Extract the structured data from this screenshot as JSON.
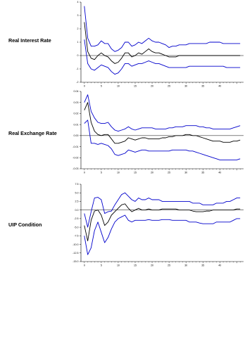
{
  "chart_data": [
    {
      "type": "line",
      "row_label": "Real Interest Rate",
      "xlim": [
        -1,
        47
      ],
      "ylim": [
        -2,
        4
      ],
      "x_ticks": [
        "0",
        "5",
        "10",
        "15",
        "20",
        "25",
        "30",
        "35",
        "40"
      ],
      "y_ticks": [
        "-2",
        "-1",
        "0",
        "1",
        "2",
        "3",
        "4"
      ],
      "x": [
        0,
        1,
        2,
        3,
        4,
        5,
        6,
        7,
        8,
        9,
        10,
        11,
        12,
        13,
        14,
        15,
        16,
        17,
        18,
        19,
        20,
        21,
        22,
        23,
        24,
        25,
        26,
        27,
        28,
        29,
        30,
        31,
        32,
        33,
        34,
        35,
        36,
        37,
        38,
        39,
        40,
        41,
        42,
        43,
        44,
        45,
        46
      ],
      "series": [
        {
          "role": "upper",
          "color": "#0000cc",
          "values": [
            3.7,
            1.3,
            0.7,
            0.7,
            0.8,
            1.1,
            0.9,
            0.9,
            0.5,
            0.3,
            0.4,
            0.6,
            1.0,
            1.0,
            0.7,
            0.8,
            1.0,
            0.9,
            1.1,
            1.3,
            1.1,
            1.0,
            1.0,
            0.9,
            0.8,
            0.6,
            0.7,
            0.7,
            0.8,
            0.8,
            0.8,
            0.9,
            0.9,
            0.9,
            0.9,
            0.9,
            0.9,
            1.0,
            1.0,
            1.0,
            1.0,
            0.9,
            0.9,
            0.9,
            0.9,
            0.9,
            0.9
          ]
        },
        {
          "role": "response",
          "color": "#000000",
          "values": [
            2.5,
            0.3,
            -0.2,
            -0.3,
            0.0,
            0.2,
            0.0,
            -0.1,
            -0.4,
            -0.6,
            -0.5,
            -0.2,
            0.2,
            0.2,
            -0.1,
            0.0,
            0.2,
            0.1,
            0.3,
            0.5,
            0.3,
            0.2,
            0.2,
            0.1,
            0.0,
            -0.1,
            -0.1,
            -0.1,
            0.0,
            0.0,
            0.0,
            0.0,
            0.0,
            0.0,
            0.0,
            0.0,
            0.0,
            0.0,
            0.0,
            0.0,
            0.0,
            0.0,
            0.0,
            0.0,
            0.0,
            0.0,
            0.0
          ]
        },
        {
          "role": "lower",
          "color": "#0000cc",
          "values": [
            1.2,
            -0.6,
            -1.0,
            -1.1,
            -0.9,
            -0.7,
            -0.8,
            -0.9,
            -1.2,
            -1.4,
            -1.3,
            -1.0,
            -0.6,
            -0.6,
            -0.8,
            -0.7,
            -0.6,
            -0.6,
            -0.5,
            -0.4,
            -0.5,
            -0.6,
            -0.6,
            -0.7,
            -0.8,
            -0.9,
            -0.9,
            -0.9,
            -0.9,
            -0.9,
            -0.9,
            -0.8,
            -0.8,
            -0.8,
            -0.8,
            -0.8,
            -0.8,
            -0.8,
            -0.8,
            -0.8,
            -0.8,
            -0.8,
            -0.9,
            -0.9,
            -0.9,
            -0.9,
            -0.9
          ]
        }
      ]
    },
    {
      "type": "line",
      "row_label": "Real Exchange Rate",
      "xlim": [
        -1,
        47
      ],
      "ylim": [
        -0.03,
        0.04
      ],
      "x_ticks": [
        "0",
        "5",
        "10",
        "15",
        "20",
        "25",
        "30",
        "35",
        "40"
      ],
      "y_ticks": [
        "-0.03",
        "-0.02",
        "-0.01",
        "0.00",
        "0.01",
        "0.02",
        "0.03",
        "0.04"
      ],
      "x": [
        0,
        1,
        2,
        3,
        4,
        5,
        6,
        7,
        8,
        9,
        10,
        11,
        12,
        13,
        14,
        15,
        16,
        17,
        18,
        19,
        20,
        21,
        22,
        23,
        24,
        25,
        26,
        27,
        28,
        29,
        30,
        31,
        32,
        33,
        34,
        35,
        36,
        37,
        38,
        39,
        40,
        41,
        42,
        43,
        44,
        45,
        46
      ],
      "series": [
        {
          "role": "upper",
          "color": "#0000cc",
          "values": [
            0.03,
            0.037,
            0.022,
            0.016,
            0.012,
            0.011,
            0.011,
            0.012,
            0.008,
            0.005,
            0.004,
            0.005,
            0.006,
            0.008,
            0.006,
            0.005,
            0.006,
            0.007,
            0.007,
            0.007,
            0.007,
            0.006,
            0.006,
            0.006,
            0.006,
            0.007,
            0.007,
            0.008,
            0.008,
            0.008,
            0.009,
            0.009,
            0.009,
            0.009,
            0.008,
            0.008,
            0.007,
            0.007,
            0.006,
            0.006,
            0.006,
            0.006,
            0.006,
            0.006,
            0.007,
            0.008,
            0.009
          ]
        },
        {
          "role": "response",
          "color": "#000000",
          "values": [
            0.023,
            0.03,
            0.012,
            0.004,
            0.001,
            0.0,
            0.001,
            0.001,
            -0.003,
            -0.007,
            -0.007,
            -0.006,
            -0.005,
            -0.002,
            -0.003,
            -0.004,
            -0.003,
            -0.002,
            -0.002,
            -0.003,
            -0.003,
            -0.003,
            -0.003,
            -0.002,
            -0.002,
            -0.001,
            -0.001,
            0.0,
            0.0,
            0.0,
            0.001,
            0.001,
            0.0,
            0.0,
            -0.001,
            -0.002,
            -0.003,
            -0.004,
            -0.005,
            -0.005,
            -0.005,
            -0.006,
            -0.006,
            -0.006,
            -0.005,
            -0.005,
            -0.004
          ]
        },
        {
          "role": "lower",
          "color": "#0000cc",
          "values": [
            0.011,
            0.014,
            -0.007,
            -0.007,
            -0.008,
            -0.007,
            -0.008,
            -0.009,
            -0.012,
            -0.017,
            -0.018,
            -0.017,
            -0.016,
            -0.013,
            -0.014,
            -0.015,
            -0.014,
            -0.013,
            -0.013,
            -0.014,
            -0.014,
            -0.014,
            -0.014,
            -0.014,
            -0.014,
            -0.014,
            -0.013,
            -0.013,
            -0.013,
            -0.013,
            -0.013,
            -0.014,
            -0.014,
            -0.015,
            -0.016,
            -0.017,
            -0.018,
            -0.019,
            -0.02,
            -0.021,
            -0.022,
            -0.022,
            -0.022,
            -0.022,
            -0.022,
            -0.022,
            -0.021
          ]
        }
      ]
    },
    {
      "type": "line",
      "row_label": "UIP Condition",
      "xlim": [
        -1,
        47
      ],
      "ylim": [
        -15.0,
        7.5
      ],
      "x_ticks": [
        "0",
        "5",
        "10",
        "15",
        "20",
        "25",
        "30",
        "35",
        "40"
      ],
      "y_ticks": [
        "-15.0",
        "-12.5",
        "-10.0",
        "-7.5",
        "-5.0",
        "-2.5",
        "0.0",
        "2.5",
        "5.0",
        "7.5"
      ],
      "x": [
        0,
        1,
        2,
        3,
        4,
        5,
        6,
        7,
        8,
        9,
        10,
        11,
        12,
        13,
        14,
        15,
        16,
        17,
        18,
        19,
        20,
        21,
        22,
        23,
        24,
        25,
        26,
        27,
        28,
        29,
        30,
        31,
        32,
        33,
        34,
        35,
        36,
        37,
        38,
        39,
        40,
        41,
        42,
        43,
        44,
        45,
        46
      ],
      "series": [
        {
          "role": "upper",
          "color": "#0000cc",
          "values": [
            -1.0,
            -5.0,
            -0.5,
            3.5,
            3.7,
            3.0,
            -1.0,
            -0.5,
            -0.3,
            1.5,
            3.0,
            4.5,
            5.0,
            4.0,
            3.0,
            2.5,
            3.5,
            3.0,
            3.0,
            3.5,
            3.0,
            3.0,
            3.0,
            2.5,
            2.5,
            2.5,
            2.5,
            2.5,
            2.5,
            2.5,
            2.5,
            2.5,
            2.0,
            2.0,
            2.0,
            1.5,
            1.5,
            1.5,
            1.5,
            2.0,
            2.0,
            2.0,
            2.5,
            2.5,
            3.0,
            3.5,
            3.5
          ]
        },
        {
          "role": "response",
          "color": "#000000",
          "values": [
            -4.5,
            -9.0,
            -3.0,
            -0.3,
            0.0,
            -1.5,
            -4.5,
            -3.5,
            -1.5,
            -0.5,
            0.5,
            1.5,
            1.8,
            0.5,
            -0.5,
            0.0,
            0.5,
            0.0,
            0.0,
            0.3,
            0.0,
            0.0,
            0.0,
            0.3,
            0.3,
            0.3,
            0.3,
            0.3,
            0.0,
            0.0,
            0.0,
            0.0,
            -0.3,
            -0.5,
            -0.5,
            -0.5,
            -0.3,
            -0.3,
            0.0,
            0.0,
            0.0,
            0.0,
            0.0,
            0.0,
            0.0,
            0.3,
            0.3
          ]
        },
        {
          "role": "lower",
          "color": "#0000cc",
          "values": [
            -7.5,
            -13.0,
            -11.0,
            -6.0,
            -3.5,
            -6.5,
            -9.5,
            -8.0,
            -5.5,
            -3.5,
            -2.5,
            -2.0,
            -1.5,
            -3.0,
            -3.5,
            -3.0,
            -3.0,
            -3.0,
            -3.0,
            -2.8,
            -3.0,
            -3.0,
            -3.0,
            -2.8,
            -2.8,
            -2.8,
            -3.0,
            -3.0,
            -3.0,
            -3.0,
            -3.0,
            -3.5,
            -3.5,
            -3.5,
            -3.8,
            -4.0,
            -4.0,
            -4.0,
            -4.0,
            -3.5,
            -3.5,
            -3.5,
            -3.5,
            -3.5,
            -3.0,
            -2.5,
            -2.5
          ]
        }
      ]
    }
  ]
}
